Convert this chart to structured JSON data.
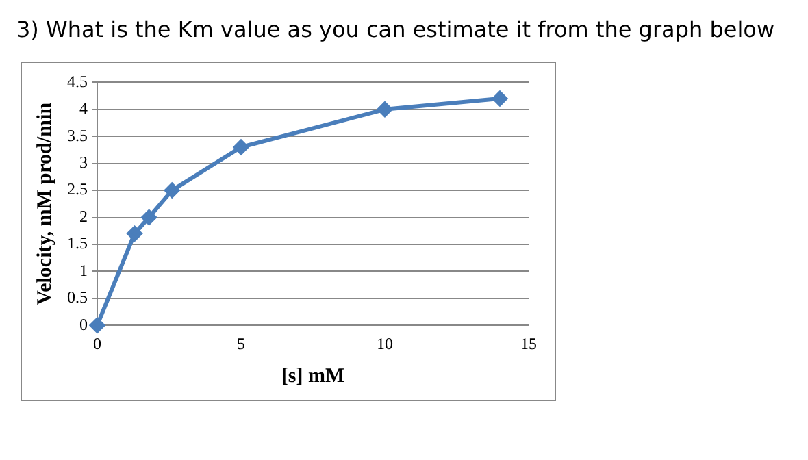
{
  "chart_data": {
    "type": "line",
    "title": "3) What is the Km value as you can estimate it from the graph below",
    "xlabel": "[s] mM",
    "ylabel": "Velocity, mM prod/min",
    "x": [
      0,
      1.3,
      1.8,
      2.6,
      5,
      10,
      14
    ],
    "series": [
      {
        "color": "#4a7ebb",
        "values": [
          0,
          1.7,
          2.0,
          2.5,
          3.3,
          4.0,
          4.2
        ]
      }
    ],
    "xlim": [
      0,
      15
    ],
    "xticks": [
      0,
      5,
      10,
      15
    ],
    "ylim": [
      0,
      4.5
    ],
    "yticks": [
      0,
      0.5,
      1,
      1.5,
      2,
      2.5,
      3,
      3.5,
      4,
      4.5
    ],
    "grid": "y",
    "legend": false,
    "marker": "diamond",
    "line_style": "solid"
  }
}
